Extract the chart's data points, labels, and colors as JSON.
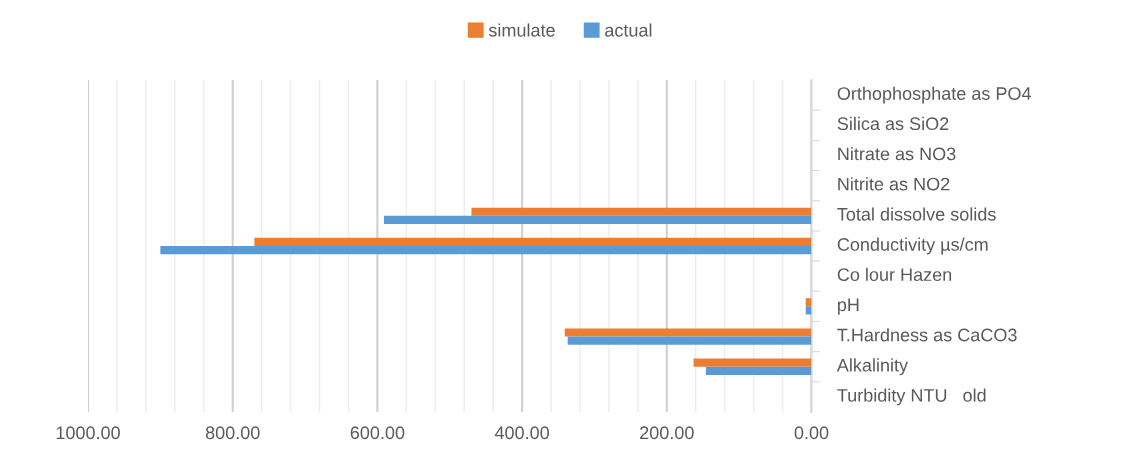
{
  "chart_data": {
    "type": "bar",
    "orientation": "horizontal",
    "legend": "top",
    "grid": "x",
    "categories": [
      "Orthophosphate as PO4",
      "Silica as SiO2",
      "Nitrate as NO3",
      "Nitrite as NO2",
      "Total dissolve solids",
      "Conductivity µs/cm",
      "Co lour Hazen",
      "pH",
      "T.Hardness as CaCO3",
      "Alkalinity",
      "Turbidity NTU   old"
    ],
    "series": [
      {
        "name": "simulate",
        "color": "#ed7d31",
        "values": [
          0,
          0,
          0,
          0,
          470,
          770,
          0,
          8,
          341,
          163,
          0
        ]
      },
      {
        "name": "actual",
        "color": "#5b9bd5",
        "values": [
          0,
          0,
          0,
          0,
          591,
          900,
          0,
          8,
          337,
          146,
          0
        ]
      }
    ],
    "xlim": [
      1000,
      0
    ],
    "xticks": [
      {
        "value": 1000,
        "label": "1000.00"
      },
      {
        "value": 960,
        "label": null
      },
      {
        "value": 920,
        "label": null
      },
      {
        "value": 880,
        "label": null
      },
      {
        "value": 840,
        "label": null
      },
      {
        "value": 800,
        "label": "800.00"
      },
      {
        "value": 760,
        "label": null
      },
      {
        "value": 720,
        "label": null
      },
      {
        "value": 680,
        "label": null
      },
      {
        "value": 640,
        "label": null
      },
      {
        "value": 600,
        "label": "600.00"
      },
      {
        "value": 560,
        "label": null
      },
      {
        "value": 520,
        "label": null
      },
      {
        "value": 480,
        "label": null
      },
      {
        "value": 440,
        "label": null
      },
      {
        "value": 400,
        "label": "400.00"
      },
      {
        "value": 360,
        "label": null
      },
      {
        "value": 320,
        "label": null
      },
      {
        "value": 280,
        "label": null
      },
      {
        "value": 240,
        "label": null
      },
      {
        "value": 200,
        "label": "200.00"
      },
      {
        "value": 160,
        "label": null
      },
      {
        "value": 120,
        "label": null
      },
      {
        "value": 80,
        "label": null
      },
      {
        "value": 40,
        "label": null
      },
      {
        "value": 0,
        "label": "0.00"
      }
    ]
  }
}
